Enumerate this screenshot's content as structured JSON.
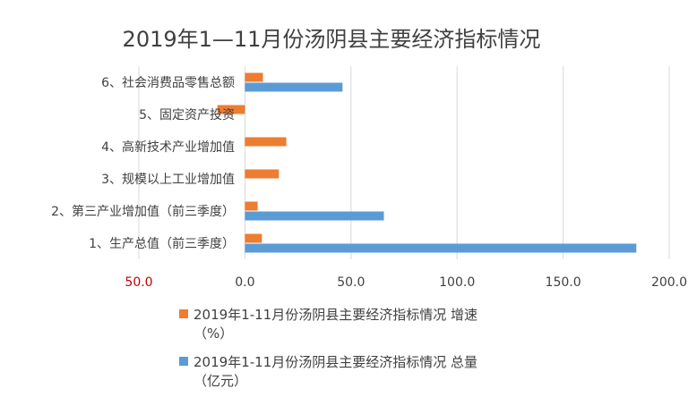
{
  "chart_data": {
    "type": "bar",
    "orientation": "horizontal",
    "title": "2019年1—11月份汤阴县主要经济指标情况",
    "categories": [
      "1、生产总值（前三季度）",
      "2、第三产业增加值（前三季度）",
      "3、规模以上工业增加值",
      "4、高新技术产业增加值",
      "5、固定资产投资",
      "6、社会消费品零售总额"
    ],
    "series": [
      {
        "name": "2019年1-11月份汤阴县主要经济指标情况 增速（%）",
        "color": "#ed7d31",
        "values": [
          8.0,
          6.0,
          16.0,
          19.5,
          -13.0,
          8.5
        ]
      },
      {
        "name": "2019年1-11月份汤阴县主要经济指标情况 总量（亿元）",
        "color": "#5b9bd5",
        "values": [
          184.5,
          65.5,
          null,
          null,
          null,
          46.0
        ]
      }
    ],
    "xlim": [
      -50,
      200
    ],
    "xticks": [
      -50,
      0,
      50,
      100,
      150,
      200
    ],
    "xtick_labels": [
      "50.0",
      "0.0",
      "50.0",
      "100.0",
      "150.0",
      "200.0"
    ],
    "grid": true,
    "legend_position": "bottom"
  }
}
